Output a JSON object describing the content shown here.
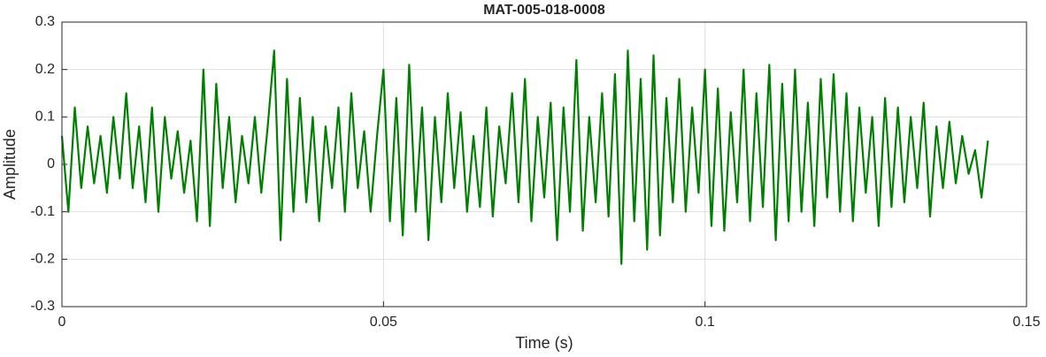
{
  "chart_data": {
    "type": "line",
    "title": "MAT-005-018-0008",
    "x_label": "Time (s)",
    "y_label": "Amplitude",
    "x": [
      0,
      0.001,
      0.002,
      0.003,
      0.004,
      0.005,
      0.006,
      0.007,
      0.008,
      0.009,
      0.01,
      0.011,
      0.012,
      0.013,
      0.014,
      0.015,
      0.016,
      0.017,
      0.018,
      0.019,
      0.02,
      0.021,
      0.022,
      0.023,
      0.024,
      0.025,
      0.026,
      0.027,
      0.028,
      0.029,
      0.03,
      0.031,
      0.032,
      0.033,
      0.034,
      0.035,
      0.036,
      0.037,
      0.038,
      0.039,
      0.04,
      0.041,
      0.042,
      0.043,
      0.044,
      0.045,
      0.046,
      0.047,
      0.048,
      0.049,
      0.05,
      0.051,
      0.052,
      0.053,
      0.054,
      0.055,
      0.056,
      0.057,
      0.058,
      0.059,
      0.06,
      0.061,
      0.062,
      0.063,
      0.064,
      0.065,
      0.066,
      0.067,
      0.068,
      0.069,
      0.07,
      0.071,
      0.072,
      0.073,
      0.074,
      0.075,
      0.076,
      0.077,
      0.078,
      0.079,
      0.08,
      0.081,
      0.082,
      0.083,
      0.084,
      0.085,
      0.086,
      0.087,
      0.088,
      0.089,
      0.09,
      0.091,
      0.092,
      0.093,
      0.094,
      0.095,
      0.096,
      0.097,
      0.098,
      0.099,
      0.1,
      0.101,
      0.102,
      0.103,
      0.104,
      0.105,
      0.106,
      0.107,
      0.108,
      0.109,
      0.11,
      0.111,
      0.112,
      0.113,
      0.114,
      0.115,
      0.116,
      0.117,
      0.118,
      0.119,
      0.12,
      0.121,
      0.122,
      0.123,
      0.124,
      0.125,
      0.126,
      0.127,
      0.128,
      0.129,
      0.13,
      0.131,
      0.132,
      0.133,
      0.134,
      0.135,
      0.136,
      0.137,
      0.138,
      0.139,
      0.14,
      0.141,
      0.142,
      0.143,
      0.144
    ],
    "series": [
      {
        "name": "Amplitude",
        "color": "#008000",
        "values": [
          0.06,
          -0.1,
          0.12,
          -0.05,
          0.08,
          -0.04,
          0.06,
          -0.06,
          0.1,
          -0.03,
          0.15,
          -0.05,
          0.08,
          -0.08,
          0.12,
          -0.1,
          0.1,
          -0.03,
          0.07,
          -0.06,
          0.05,
          -0.12,
          0.2,
          -0.13,
          0.17,
          -0.05,
          0.1,
          -0.08,
          0.06,
          -0.04,
          0.1,
          -0.06,
          0.08,
          0.24,
          -0.16,
          0.18,
          -0.1,
          0.14,
          -0.08,
          0.1,
          -0.12,
          0.08,
          -0.05,
          0.12,
          -0.1,
          0.15,
          -0.05,
          0.07,
          -0.1,
          0.06,
          0.2,
          -0.12,
          0.14,
          -0.15,
          0.21,
          -0.1,
          0.12,
          -0.16,
          0.1,
          -0.08,
          0.15,
          -0.05,
          0.11,
          -0.1,
          0.06,
          -0.09,
          0.12,
          -0.11,
          0.08,
          -0.04,
          0.15,
          -0.08,
          0.18,
          -0.12,
          0.1,
          -0.07,
          0.13,
          -0.16,
          0.12,
          -0.1,
          0.22,
          -0.14,
          0.1,
          -0.08,
          0.15,
          -0.11,
          0.19,
          -0.21,
          0.24,
          -0.12,
          0.18,
          -0.18,
          0.23,
          -0.15,
          0.14,
          -0.08,
          0.18,
          -0.1,
          0.12,
          -0.06,
          0.2,
          -0.13,
          0.16,
          -0.14,
          0.11,
          -0.08,
          0.2,
          -0.12,
          0.15,
          -0.09,
          0.21,
          -0.16,
          0.17,
          -0.12,
          0.2,
          -0.1,
          0.13,
          -0.13,
          0.18,
          -0.07,
          0.19,
          -0.1,
          0.15,
          -0.12,
          0.12,
          -0.06,
          0.1,
          -0.13,
          0.14,
          -0.09,
          0.12,
          -0.08,
          0.1,
          -0.05,
          0.13,
          -0.11,
          0.08,
          -0.05,
          0.09,
          -0.04,
          0.06,
          -0.02,
          0.03,
          -0.07,
          0.05
        ]
      }
    ],
    "xlim": [
      0,
      0.15
    ],
    "xticks": [
      0,
      0.05,
      0.1,
      0.15
    ],
    "ylim": [
      -0.3,
      0.3
    ],
    "yticks": [
      -0.3,
      -0.2,
      -0.1,
      0,
      0.1,
      0.2,
      0.3
    ],
    "grid": true
  }
}
